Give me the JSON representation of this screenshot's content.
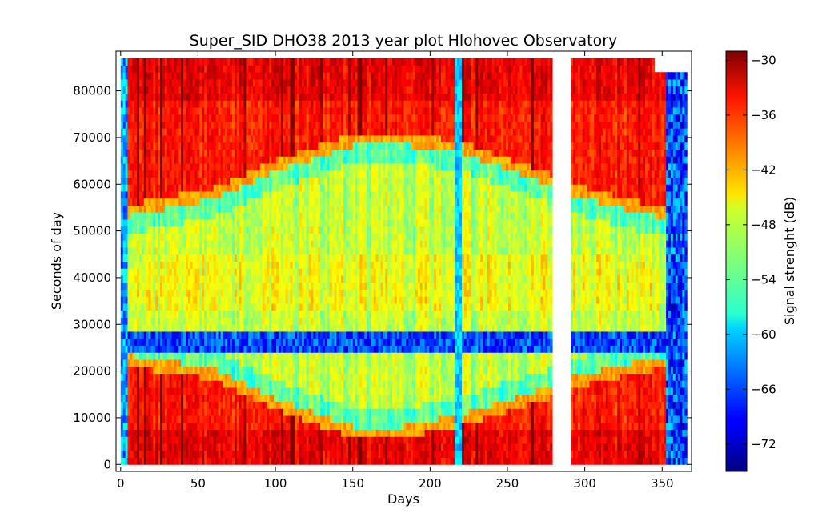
{
  "chart_data": {
    "type": "heatmap",
    "title": "Super_SID DHO38 2013 year plot Hlohovec Observatory",
    "xlabel": "Days",
    "ylabel": "Seconds of day",
    "xlim": [
      -3,
      369
    ],
    "ylim": [
      -1500,
      88500
    ],
    "xticks": [
      0,
      50,
      100,
      150,
      200,
      250,
      300,
      350
    ],
    "yticks": [
      0,
      10000,
      20000,
      30000,
      40000,
      50000,
      60000,
      70000,
      80000
    ],
    "colorbar": {
      "label": "Signal strenght (dB)",
      "range": [
        -75,
        -29
      ],
      "ticks": [
        -30,
        -36,
        -42,
        -48,
        -54,
        -60,
        -66,
        -72
      ],
      "colormap": "jet"
    },
    "data_gap_days": [
      279,
      291
    ],
    "features": {
      "sunrise_seconds_by_day": [
        [
          0,
          22500
        ],
        [
          60,
          19500
        ],
        [
          100,
          13000
        ],
        [
          150,
          7000
        ],
        [
          175,
          6500
        ],
        [
          220,
          9500
        ],
        [
          278,
          15500
        ],
        [
          291,
          17500
        ],
        [
          330,
          20500
        ],
        [
          352,
          22000
        ]
      ],
      "sunset_seconds_by_day": [
        [
          0,
          54000
        ],
        [
          60,
          58000
        ],
        [
          100,
          64000
        ],
        [
          150,
          69500
        ],
        [
          175,
          70000
        ],
        [
          220,
          68000
        ],
        [
          278,
          61000
        ],
        [
          291,
          59000
        ],
        [
          330,
          55500
        ],
        [
          352,
          54000
        ]
      ],
      "noise_band_seconds": [
        24500,
        28000
      ],
      "night_level_db": -36,
      "day_level_db": -49,
      "band_level_db": -66
    }
  }
}
